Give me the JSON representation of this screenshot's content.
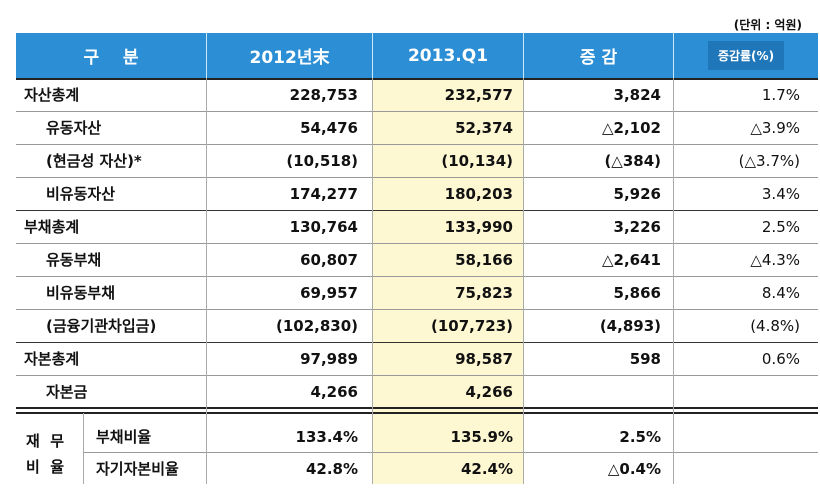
{
  "unit_note": "(단위 : 억원)",
  "headers": {
    "category": "구    분",
    "col_2012": "2012년末",
    "col_2013": "2013.Q1",
    "change": "증 감",
    "rate": "증감률(%)"
  },
  "rows": [
    {
      "label": "자산총계",
      "v2012": "228,753",
      "v2013": "232,577",
      "change": "3,824",
      "rate": "1.7%"
    },
    {
      "label": "유동자산",
      "v2012": "54,476",
      "v2013": "52,374",
      "change": "△2,102",
      "rate": "△3.9%"
    },
    {
      "label": "(현금성 자산)*",
      "v2012": "(10,518)",
      "v2013": "(10,134)",
      "change": "(△384)",
      "rate": "(△3.7%)"
    },
    {
      "label": "비유동자산",
      "v2012": "174,277",
      "v2013": "180,203",
      "change": "5,926",
      "rate": "3.4%"
    },
    {
      "label": "부채총계",
      "v2012": "130,764",
      "v2013": "133,990",
      "change": "3,226",
      "rate": "2.5%"
    },
    {
      "label": "유동부채",
      "v2012": "60,807",
      "v2013": "58,166",
      "change": "△2,641",
      "rate": "△4.3%"
    },
    {
      "label": "비유동부채",
      "v2012": "69,957",
      "v2013": "75,823",
      "change": "5,866",
      "rate": "8.4%"
    },
    {
      "label": "(금융기관차입금)",
      "v2012": "(102,830)",
      "v2013": "(107,723)",
      "change": "(4,893)",
      "rate": "(4.8%)"
    },
    {
      "label": "자본총계",
      "v2012": "97,989",
      "v2013": "98,587",
      "change": "598",
      "rate": "0.6%"
    },
    {
      "label": "자본금",
      "v2012": "4,266",
      "v2013": "4,266",
      "change": "",
      "rate": ""
    }
  ],
  "ratio_section": {
    "side_label_1": "재  무",
    "side_label_2": "비  율",
    "rows": [
      {
        "label": "부채비율",
        "v2012": "133.4%",
        "v2013": "135.9%",
        "change": "2.5%",
        "rate": ""
      },
      {
        "label": "자기자본비율",
        "v2012": "42.8%",
        "v2013": "42.4%",
        "change": "△0.4%",
        "rate": ""
      }
    ]
  },
  "colors": {
    "header_bg": "#2c8fd6",
    "highlight_bg": "#fdf7d2"
  }
}
